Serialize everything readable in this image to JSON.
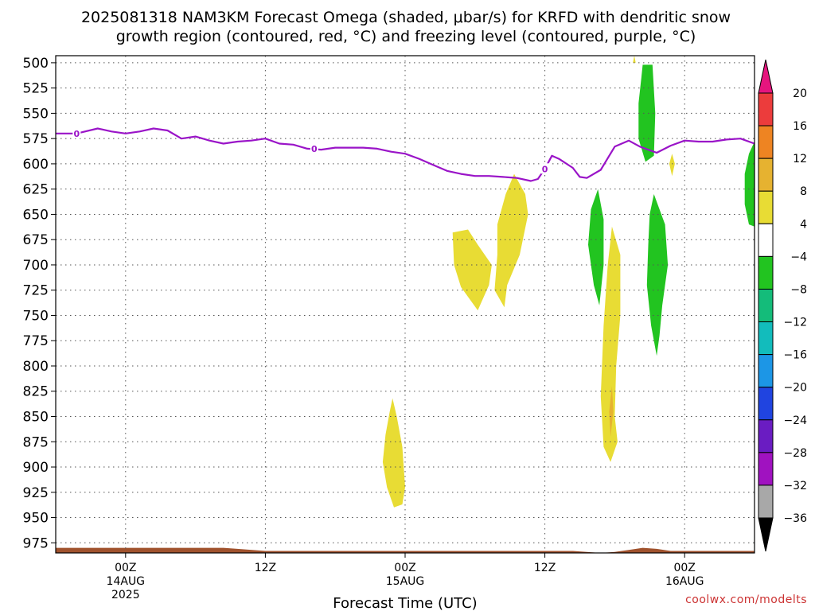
{
  "chart_data": {
    "type": "heatmap",
    "title_line1": "2025081318 NAM3KM Forecast Omega (shaded, μbar/s) for KRFD with dendritic snow",
    "title_line2": "growth region (contoured, red, °C) and freezing level (contoured, purple, °C)",
    "xlabel": "Forecast Time (UTC)",
    "credit": "coolwx.com/modelts",
    "y_axis": {
      "scale": "pressure (hPa), inverted",
      "ylim": [
        985,
        493
      ],
      "ticks": [
        500,
        525,
        550,
        575,
        600,
        625,
        650,
        675,
        700,
        725,
        750,
        775,
        800,
        825,
        850,
        875,
        900,
        925,
        950,
        975
      ]
    },
    "x_axis": {
      "unit": "hours",
      "xlim": [
        -5,
        45
      ],
      "ticks": [
        {
          "h": 0,
          "lines": [
            "00Z",
            "14AUG",
            "2025"
          ]
        },
        {
          "h": 10,
          "lines": [
            "12Z",
            "",
            ""
          ]
        },
        {
          "h": 20,
          "lines": [
            "00Z",
            "15AUG",
            ""
          ]
        },
        {
          "h": 30,
          "lines": [
            "12Z",
            "",
            ""
          ]
        },
        {
          "h": 40,
          "lines": [
            "00Z",
            "16AUG",
            ""
          ]
        }
      ]
    },
    "colorbar": {
      "labels": [
        "20",
        "16",
        "12",
        "8",
        "4",
        "−4",
        "−8",
        "−12",
        "−16",
        "−20",
        "−24",
        "−28",
        "−32",
        "−36"
      ],
      "colors": [
        "#ec3c3c",
        "#ee8422",
        "#e6b230",
        "#e8dc34",
        "#ffffff",
        "#22c420",
        "#14bc7a",
        "#12bcbc",
        "#1c96e6",
        "#2044e0",
        "#6a1cc2",
        "#a012c0",
        "#a8a8a8"
      ],
      "top_arrow_color": "#e6157e",
      "bottom_arrow_color": "#000000"
    },
    "freezing_level": {
      "label": "0",
      "color": "#9a14c8",
      "x": [
        -5,
        -3.5,
        -2,
        -1,
        0,
        1,
        2,
        3,
        4,
        5,
        6,
        7,
        8,
        9,
        10,
        11,
        12,
        13,
        14,
        15,
        16,
        17,
        18,
        19,
        20,
        21,
        22,
        23,
        24,
        25,
        26,
        27,
        28,
        29,
        29.5,
        30,
        30.5,
        31,
        32,
        32.5,
        33,
        34,
        35,
        36,
        36.8,
        38,
        39,
        40,
        41,
        42,
        43,
        44,
        45
      ],
      "y": [
        570,
        570,
        565,
        568,
        570,
        568,
        565,
        567,
        575,
        573,
        577,
        580,
        578,
        577,
        575,
        580,
        581,
        585,
        586,
        584,
        584,
        584,
        585,
        588,
        590,
        595,
        601,
        607,
        610,
        612,
        612,
        613,
        614,
        617,
        615,
        605,
        592,
        595,
        604,
        613,
        614,
        606,
        583,
        577,
        583,
        589,
        582,
        577,
        578,
        578,
        576,
        575,
        580
      ]
    },
    "omega_regions": [
      {
        "color": "#e8dc34",
        "value_band": "4 to 8",
        "points": [
          [
            27.8,
            610
          ],
          [
            28.6,
            630
          ],
          [
            28.8,
            650
          ],
          [
            28.2,
            690
          ],
          [
            27.3,
            720
          ],
          [
            27.1,
            742
          ],
          [
            26.4,
            725
          ],
          [
            26.6,
            690
          ],
          [
            26.6,
            660
          ],
          [
            27.2,
            630
          ]
        ]
      },
      {
        "color": "#e8dc34",
        "value_band": "4 to 8",
        "points": [
          [
            24.5,
            665
          ],
          [
            25.2,
            680
          ],
          [
            26.2,
            700
          ],
          [
            26.0,
            720
          ],
          [
            25.2,
            745
          ],
          [
            24.0,
            722
          ],
          [
            23.5,
            700
          ],
          [
            23.4,
            668
          ]
        ]
      },
      {
        "color": "#e8dc34",
        "value_band": "4 to 8",
        "points": [
          [
            19.1,
            832
          ],
          [
            19.4,
            850
          ],
          [
            19.8,
            880
          ],
          [
            20.0,
            920
          ],
          [
            19.8,
            937
          ],
          [
            19.2,
            940
          ],
          [
            18.7,
            920
          ],
          [
            18.4,
            895
          ],
          [
            18.6,
            868
          ],
          [
            18.9,
            845
          ]
        ]
      },
      {
        "color": "#e8dc34",
        "value_band": "4 to 8",
        "points": [
          [
            34.8,
            662
          ],
          [
            35.4,
            690
          ],
          [
            35.4,
            750
          ],
          [
            35.1,
            800
          ],
          [
            35.0,
            850
          ],
          [
            35.2,
            875
          ],
          [
            34.7,
            895
          ],
          [
            34.2,
            880
          ],
          [
            34.0,
            830
          ],
          [
            34.2,
            760
          ],
          [
            34.5,
            700
          ]
        ]
      },
      {
        "color": "#e6b230",
        "value_band": "8 to 12",
        "points": [
          [
            34.8,
            820
          ],
          [
            34.9,
            845
          ],
          [
            34.7,
            870
          ],
          [
            34.6,
            845
          ]
        ]
      },
      {
        "color": "#e8dc34",
        "value_band": "4 to 8",
        "points": [
          [
            36.4,
            493
          ],
          [
            36.5,
            500
          ],
          [
            36.3,
            500
          ]
        ]
      },
      {
        "color": "#e8dc34",
        "value_band": "4 to 8",
        "points": [
          [
            39.1,
            590
          ],
          [
            39.3,
            600
          ],
          [
            39.1,
            612
          ],
          [
            38.9,
            600
          ]
        ]
      },
      {
        "color": "#22c420",
        "value_band": "-4 to -8",
        "points": [
          [
            37.0,
            502
          ],
          [
            37.7,
            502
          ],
          [
            37.9,
            550
          ],
          [
            37.8,
            592
          ],
          [
            37.2,
            598
          ],
          [
            36.7,
            575
          ],
          [
            36.7,
            540
          ],
          [
            36.9,
            515
          ]
        ]
      },
      {
        "color": "#22c420",
        "value_band": "-4 to -8",
        "points": [
          [
            33.8,
            625
          ],
          [
            34.2,
            655
          ],
          [
            34.2,
            700
          ],
          [
            33.9,
            740
          ],
          [
            33.5,
            720
          ],
          [
            33.1,
            680
          ],
          [
            33.3,
            645
          ]
        ]
      },
      {
        "color": "#22c420",
        "value_band": "-4 to -8",
        "points": [
          [
            37.8,
            630
          ],
          [
            38.6,
            660
          ],
          [
            38.8,
            700
          ],
          [
            38.4,
            740
          ],
          [
            38.2,
            770
          ],
          [
            38.0,
            790
          ],
          [
            37.6,
            760
          ],
          [
            37.3,
            720
          ],
          [
            37.4,
            680
          ],
          [
            37.5,
            650
          ]
        ]
      },
      {
        "color": "#22c420",
        "value_band": "-4 to -8",
        "points": [
          [
            45,
            578
          ],
          [
            45,
            662
          ],
          [
            44.6,
            660
          ],
          [
            44.3,
            640
          ],
          [
            44.3,
            610
          ],
          [
            44.6,
            590
          ]
        ]
      }
    ],
    "terrain": {
      "color": "#a0522d",
      "x": [
        -5,
        0,
        5,
        7,
        8,
        10,
        15,
        20,
        25,
        30,
        32,
        33,
        34,
        35,
        36,
        37,
        38,
        39,
        40,
        45
      ],
      "y": [
        980,
        980,
        980,
        980,
        981,
        983,
        983,
        983,
        983,
        983,
        983,
        984,
        985,
        984,
        982,
        980,
        981,
        983,
        983,
        983
      ]
    }
  }
}
